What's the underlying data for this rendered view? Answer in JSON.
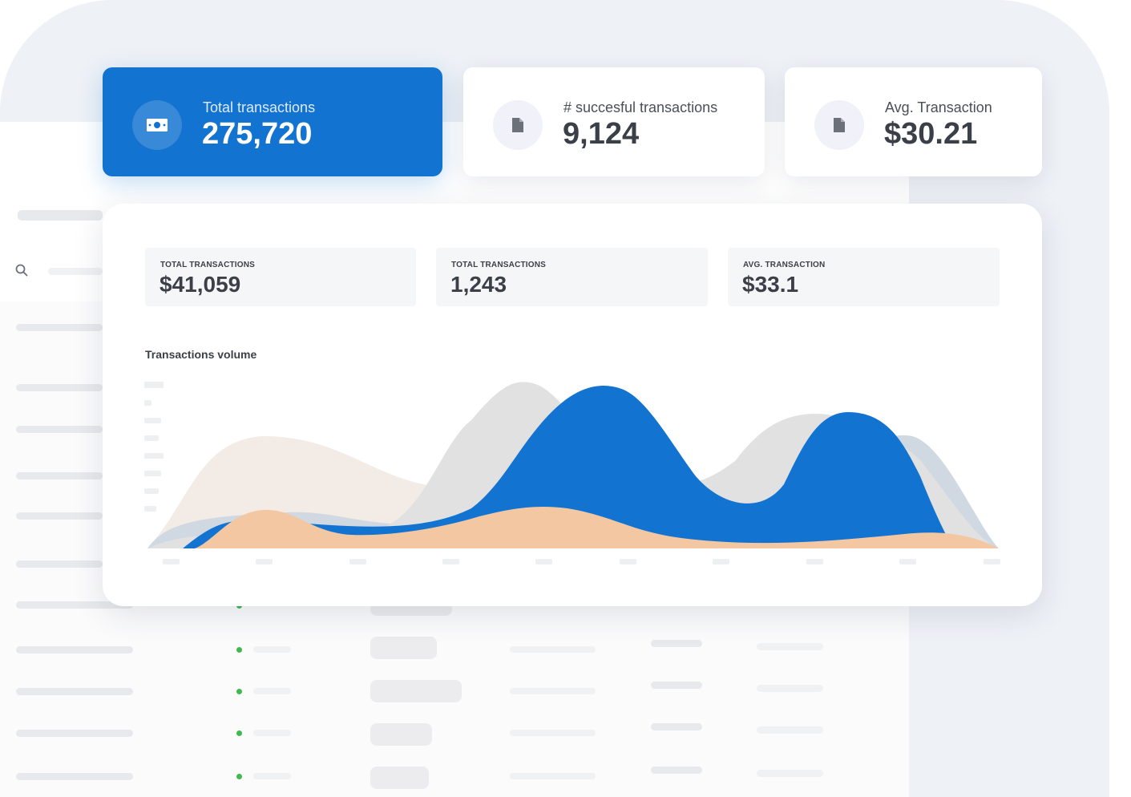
{
  "colors": {
    "accent": "#1373d1",
    "peach": "#f2c7a2",
    "beige": "#f2ebe6",
    "grey": "#e1e1e2",
    "slate": "#d0d9e2"
  },
  "summary_cards": [
    {
      "label": "Total transactions",
      "value": "275,720",
      "icon": "cash-icon"
    },
    {
      "label": "# succesful transactions",
      "value": "9,124",
      "icon": "document-icon"
    },
    {
      "label": "Avg. Transaction",
      "value": "$30.21",
      "icon": "document-icon"
    }
  ],
  "stats": [
    {
      "label": "TOTAL TRANSACTIONS",
      "value": "$41,059"
    },
    {
      "label": "TOTAL TRANSACTIONS",
      "value": "1,243"
    },
    {
      "label": "AVG. TRANSACTION",
      "value": "$33.1"
    }
  ],
  "chart": {
    "title": "Transactions volume"
  }
}
